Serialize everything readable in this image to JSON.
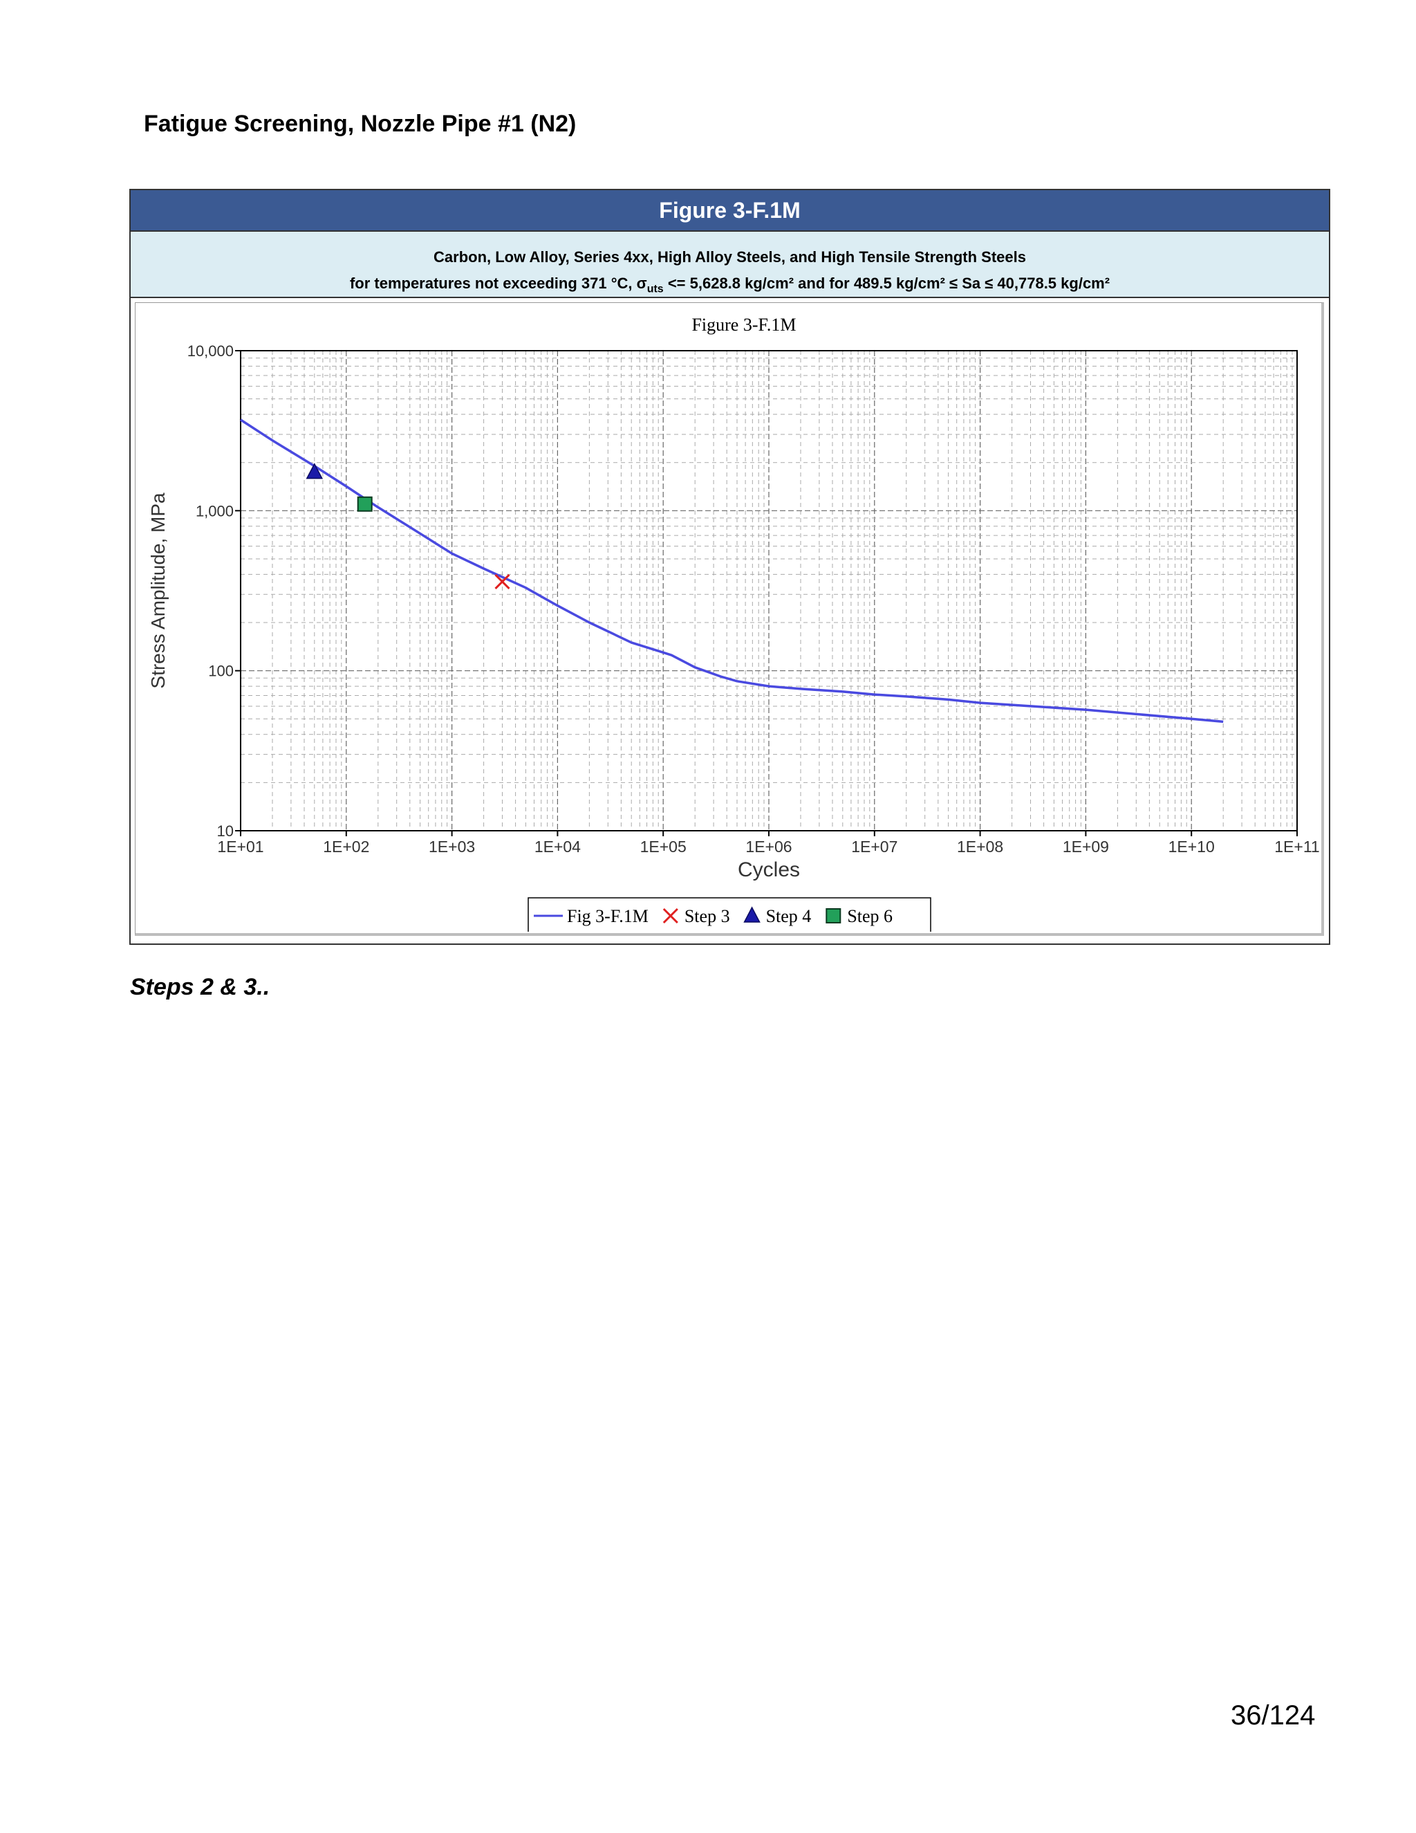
{
  "document": {
    "title": "Fatigue Screening, Nozzle Pipe #1 (N2)",
    "note": "Steps 2 & 3..",
    "page_number": "36/124"
  },
  "figure": {
    "header": "Figure 3-F.1M",
    "subtitle_line1": "Carbon, Low Alloy, Series 4xx, High Alloy Steels, and High Tensile Strength Steels",
    "subtitle_line2_pre": "for temperatures not exceeding 371 °C, σ",
    "subtitle_line2_sub": "uts",
    "subtitle_line2_post": " <= 5,628.8 kg/cm² and for 489.5 kg/cm² ≤ Sa ≤ 40,778.5 kg/cm²"
  },
  "chart_data": {
    "type": "line",
    "title": "Figure 3-F.1M",
    "xlabel": "Cycles",
    "ylabel": "Stress Amplitude, MPa",
    "x_scale": "log",
    "y_scale": "log",
    "xlim": [
      10,
      100000000000
    ],
    "ylim": [
      10,
      10000
    ],
    "x_ticks": [
      10,
      100,
      1000,
      10000,
      100000,
      1000000,
      10000000,
      100000000,
      1000000000,
      10000000000,
      100000000000
    ],
    "x_tick_labels": [
      "1E+01",
      "1E+02",
      "1E+03",
      "1E+04",
      "1E+05",
      "1E+06",
      "1E+07",
      "1E+08",
      "1E+09",
      "1E+10",
      "1E+11"
    ],
    "y_ticks": [
      10,
      100,
      1000,
      10000
    ],
    "y_tick_labels": [
      "10",
      "100",
      "1,000",
      "10,000"
    ],
    "grid": true,
    "legend_position": "bottom-center",
    "series": [
      {
        "name": "Fig 3-F.1M",
        "kind": "line",
        "color": "#4a4ae0",
        "x": [
          10,
          20,
          50,
          100,
          200,
          500,
          1000,
          2000,
          5000,
          10000,
          20000,
          50000,
          100000,
          120000,
          200000,
          350000,
          500000,
          1000000,
          2000000,
          5000000,
          10000000,
          20000000,
          50000000,
          100000000,
          1000000000,
          10000000000,
          20000000000
        ],
        "y": [
          3700,
          2750,
          1900,
          1420,
          1050,
          720,
          540,
          435,
          330,
          255,
          200,
          150,
          130,
          125,
          105,
          92,
          86,
          80,
          77,
          74,
          71,
          69,
          66,
          63,
          57,
          50,
          48
        ]
      },
      {
        "name": "Step 3",
        "kind": "marker",
        "marker": "x",
        "color": "#e02020",
        "x": [
          3000
        ],
        "y": [
          360
        ]
      },
      {
        "name": "Step 4",
        "kind": "marker",
        "marker": "triangle",
        "color": "#1a1aa8",
        "x": [
          50
        ],
        "y": [
          1740
        ]
      },
      {
        "name": "Step 6",
        "kind": "marker",
        "marker": "square",
        "color": "#22a05a",
        "x": [
          150
        ],
        "y": [
          1100
        ]
      }
    ]
  }
}
